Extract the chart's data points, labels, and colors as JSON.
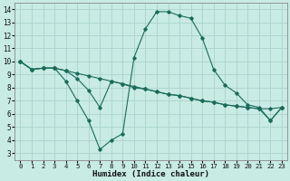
{
  "xlabel": "Humidex (Indice chaleur)",
  "xlim": [
    -0.5,
    23.5
  ],
  "ylim": [
    2.5,
    14.5
  ],
  "xticks": [
    0,
    1,
    2,
    3,
    4,
    5,
    6,
    7,
    8,
    9,
    10,
    11,
    12,
    13,
    14,
    15,
    16,
    17,
    18,
    19,
    20,
    21,
    22,
    23
  ],
  "yticks": [
    3,
    4,
    5,
    6,
    7,
    8,
    9,
    10,
    11,
    12,
    13,
    14
  ],
  "bg_color": "#c8ebe3",
  "grid_color": "#aad4cc",
  "line_color": "#1a6b5a",
  "lines": [
    {
      "x": [
        0,
        1,
        2,
        3,
        4,
        5,
        6,
        7,
        8,
        9,
        10,
        11,
        12,
        13,
        14,
        15,
        16,
        17,
        18,
        19,
        20,
        21,
        22,
        23
      ],
      "y": [
        10,
        9.4,
        9.5,
        9.5,
        9.3,
        9.1,
        8.9,
        8.7,
        8.5,
        8.3,
        8.1,
        7.9,
        7.7,
        7.5,
        7.4,
        7.2,
        7.0,
        6.9,
        6.7,
        6.6,
        6.5,
        6.4,
        6.4,
        6.5
      ]
    },
    {
      "x": [
        0,
        1,
        2,
        3,
        4,
        5,
        6,
        7,
        8,
        9,
        10,
        11,
        12,
        13,
        14,
        15,
        16,
        17,
        18,
        19,
        20,
        21,
        22,
        23
      ],
      "y": [
        10,
        9.4,
        9.5,
        9.5,
        8.5,
        7.0,
        5.5,
        3.3,
        4.0,
        4.5,
        10.3,
        12.5,
        13.8,
        13.8,
        13.5,
        13.3,
        11.8,
        9.4,
        8.2,
        7.6,
        6.7,
        6.5,
        5.5,
        6.5
      ]
    },
    {
      "x": [
        0,
        1,
        2,
        3,
        4,
        5,
        6,
        7,
        8,
        9,
        10,
        11,
        12,
        13,
        14,
        15,
        16,
        17,
        18,
        19,
        20,
        21,
        22,
        23
      ],
      "y": [
        10,
        9.4,
        9.5,
        9.5,
        9.3,
        8.7,
        7.8,
        6.5,
        8.5,
        8.3,
        8.0,
        7.9,
        7.7,
        7.5,
        7.4,
        7.2,
        7.0,
        6.9,
        6.7,
        6.6,
        6.5,
        6.4,
        5.5,
        6.5
      ]
    }
  ]
}
